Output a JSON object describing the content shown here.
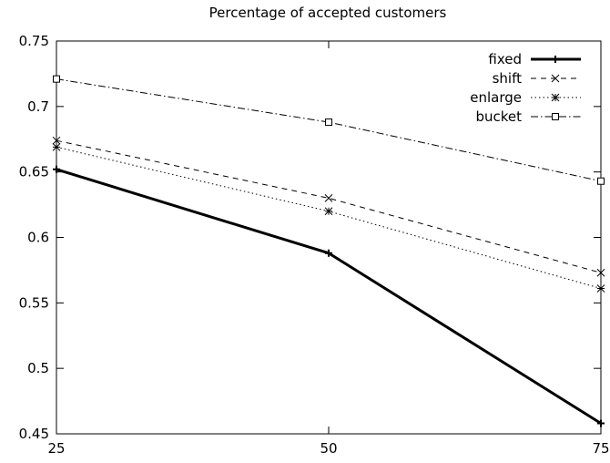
{
  "chart_data": {
    "type": "line",
    "title": "Percentage of accepted customers",
    "xlabel": "",
    "ylabel": "",
    "x": [
      25,
      50,
      75
    ],
    "x_tick_labels": [
      "25",
      "50",
      "75"
    ],
    "y_tick_labels": [
      "0.45",
      "0.5",
      "0.55",
      "0.6",
      "0.65",
      "0.7",
      "0.75"
    ],
    "y_ticks": [
      0.45,
      0.5,
      0.55,
      0.6,
      0.65,
      0.7,
      0.75
    ],
    "xlim": [
      25,
      75
    ],
    "ylim": [
      0.45,
      0.75
    ],
    "grid": false,
    "legend_position": "top-right",
    "series": [
      {
        "name": "fixed",
        "values": [
          0.652,
          0.588,
          0.458
        ],
        "color": "#000000",
        "style": "solid",
        "marker": "plus"
      },
      {
        "name": "shift",
        "values": [
          0.674,
          0.63,
          0.573
        ],
        "color": "#000000",
        "style": "dashed",
        "marker": "cross"
      },
      {
        "name": "enlarge",
        "values": [
          0.669,
          0.62,
          0.561
        ],
        "color": "#000000",
        "style": "dotted",
        "marker": "star"
      },
      {
        "name": "bucket",
        "values": [
          0.721,
          0.688,
          0.643
        ],
        "color": "#000000",
        "style": "dashdot",
        "marker": "square"
      }
    ]
  }
}
